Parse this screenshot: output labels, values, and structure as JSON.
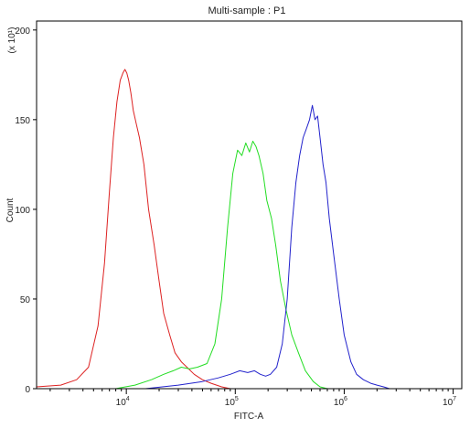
{
  "chart_data": {
    "type": "line",
    "title": "Multi-sample : P1",
    "xlabel": "FITC-A",
    "ylabel": "Count",
    "y_multiplier_label": "(x 10¹)",
    "x_scale": "log",
    "xlim": [
      1500,
      12000000
    ],
    "ylim": [
      0,
      205
    ],
    "grid": false,
    "legend": "none",
    "x_ticks": [
      {
        "value": 10000,
        "base": "10",
        "exp": "4"
      },
      {
        "value": 100000,
        "base": "10",
        "exp": "5"
      },
      {
        "value": 1000000,
        "base": "10",
        "exp": "6"
      },
      {
        "value": 10000000,
        "base": "10",
        "exp": "7"
      }
    ],
    "y_ticks": [
      0,
      50,
      100,
      150,
      200
    ],
    "series": [
      {
        "color": "#dd2222",
        "x": [
          1500,
          2500,
          3500,
          4500,
          5500,
          6300,
          7000,
          7600,
          8200,
          8800,
          9300,
          9700,
          10100,
          10500,
          11000,
          11600,
          12300,
          13200,
          14500,
          16000,
          18000,
          20000,
          22000,
          25000,
          28000,
          32000,
          36000,
          42000,
          50000,
          60000,
          75000,
          90000
        ],
        "y": [
          1,
          2,
          5,
          12,
          35,
          70,
          110,
          140,
          160,
          172,
          176,
          178,
          176,
          172,
          165,
          155,
          148,
          140,
          125,
          100,
          80,
          60,
          42,
          30,
          20,
          15,
          12,
          8,
          5,
          3,
          1,
          0
        ]
      },
      {
        "color": "#22dd22",
        "x": [
          8000,
          12000,
          17000,
          22000,
          27000,
          32000,
          38000,
          45000,
          55000,
          65000,
          75000,
          85000,
          95000,
          105000,
          115000,
          125000,
          135000,
          145000,
          155000,
          165000,
          180000,
          195000,
          215000,
          235000,
          260000,
          290000,
          330000,
          380000,
          440000,
          520000,
          600000,
          700000
        ],
        "y": [
          0,
          2,
          5,
          8,
          10,
          12,
          11,
          12,
          14,
          25,
          50,
          90,
          120,
          133,
          130,
          137,
          132,
          138,
          135,
          130,
          120,
          105,
          95,
          80,
          60,
          45,
          30,
          20,
          10,
          4,
          1,
          0
        ]
      },
      {
        "color": "#2222cc",
        "x": [
          15000,
          30000,
          50000,
          70000,
          90000,
          110000,
          130000,
          150000,
          170000,
          190000,
          210000,
          240000,
          270000,
          300000,
          330000,
          360000,
          390000,
          420000,
          450000,
          480000,
          510000,
          540000,
          570000,
          600000,
          640000,
          680000,
          730000,
          800000,
          900000,
          1000000,
          1150000,
          1300000,
          1500000,
          1750000,
          2000000,
          2300000,
          2600000
        ],
        "y": [
          0,
          2,
          4,
          6,
          8,
          10,
          9,
          10,
          8,
          7,
          8,
          12,
          25,
          50,
          90,
          115,
          130,
          140,
          145,
          150,
          158,
          150,
          152,
          140,
          125,
          115,
          95,
          75,
          50,
          30,
          15,
          8,
          5,
          3,
          2,
          1,
          0
        ]
      }
    ]
  }
}
